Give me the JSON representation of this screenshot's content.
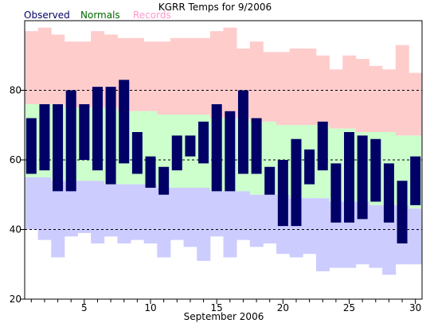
{
  "chart_data": {
    "type": "bar",
    "title": "KGRR Temps for 9/2006",
    "xlabel": "September 2006",
    "ylabel": "",
    "legend": {
      "placement": "top-left",
      "entries": [
        {
          "label": "Observed",
          "color": "#000066"
        },
        {
          "label": "Normals",
          "color": "#006600"
        },
        {
          "label": "Records",
          "color": "#ff99cc"
        }
      ]
    },
    "xlim": [
      0.5,
      30.5
    ],
    "ylim": [
      20,
      100
    ],
    "x_ticks": [
      5,
      10,
      15,
      20,
      25,
      30
    ],
    "y_ticks": [
      20,
      40,
      60,
      80
    ],
    "dashed_gridlines_y": [
      40,
      60,
      80
    ],
    "colors": {
      "record_band": "#ffcccc",
      "normal_band": "#ccffcc",
      "record_low_band": "#ccccff",
      "observed_bar": "#000066"
    },
    "days": [
      1,
      2,
      3,
      4,
      5,
      6,
      7,
      8,
      9,
      10,
      11,
      12,
      13,
      14,
      15,
      16,
      17,
      18,
      19,
      20,
      21,
      22,
      23,
      24,
      25,
      26,
      27,
      28,
      29,
      30
    ],
    "series": [
      {
        "name": "Observed",
        "high": [
          72,
          76,
          76,
          80,
          76,
          81,
          81,
          83,
          68,
          61,
          58,
          67,
          67,
          71,
          76,
          74,
          80,
          72,
          58,
          60,
          66,
          63,
          71,
          59,
          68,
          67,
          66,
          59,
          54,
          61
        ],
        "low": [
          56,
          57,
          51,
          51,
          60,
          57,
          53,
          59,
          56,
          52,
          50,
          57,
          61,
          59,
          51,
          51,
          56,
          56,
          50,
          41,
          41,
          53,
          57,
          42,
          42,
          43,
          48,
          42,
          36,
          47
        ]
      },
      {
        "name": "Normals",
        "high": [
          76,
          76,
          76,
          75,
          75,
          75,
          75,
          74,
          74,
          74,
          73,
          73,
          73,
          73,
          72,
          72,
          72,
          71,
          71,
          70,
          70,
          70,
          70,
          69,
          69,
          68,
          68,
          68,
          67,
          67
        ],
        "low": [
          55,
          55,
          54,
          54,
          54,
          54,
          53,
          53,
          53,
          53,
          52,
          52,
          52,
          52,
          51,
          51,
          51,
          50,
          50,
          50,
          49,
          49,
          49,
          48,
          48,
          48,
          47,
          47,
          47,
          46
        ]
      },
      {
        "name": "Records",
        "high": [
          97,
          98,
          96,
          94,
          94,
          97,
          96,
          95,
          95,
          94,
          94,
          95,
          95,
          95,
          97,
          98,
          92,
          94,
          91,
          91,
          92,
          92,
          90,
          86,
          90,
          89,
          87,
          86,
          93,
          85
        ],
        "low": [
          40,
          37,
          32,
          38,
          39,
          36,
          38,
          36,
          37,
          36,
          32,
          37,
          35,
          31,
          38,
          32,
          37,
          35,
          36,
          33,
          32,
          33,
          28,
          29,
          29,
          30,
          29,
          27,
          30,
          30
        ]
      }
    ]
  }
}
